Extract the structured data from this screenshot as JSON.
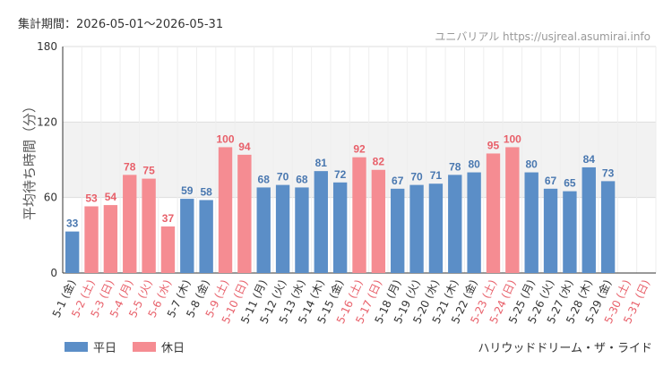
{
  "header": {
    "period": "集計期間：2026-05-01～2026-05-31",
    "site": "ユニバリアル  https://usjreal.asumirai.info"
  },
  "footer": {
    "ride": "ハリウッドドリーム・ザ・ライド"
  },
  "legend": [
    {
      "name": "平日",
      "color": "#5b8ec7"
    },
    {
      "name": "休日",
      "color": "#f58c92"
    }
  ],
  "chart_data": {
    "type": "bar",
    "ylabel": "平均待ち時間（分）",
    "ylim": [
      0,
      180
    ],
    "yticks": [
      0,
      60,
      120,
      180
    ],
    "highlight_band": [
      60,
      120
    ],
    "categories": [
      "5-1 (金)",
      "5-2 (土)",
      "5-3 (日)",
      "5-4 (月)",
      "5-5 (火)",
      "5-6 (水)",
      "5-7 (木)",
      "5-8 (金)",
      "5-9 (土)",
      "5-10 (日)",
      "5-11 (月)",
      "5-12 (火)",
      "5-13 (水)",
      "5-14 (木)",
      "5-15 (金)",
      "5-16 (土)",
      "5-17 (日)",
      "5-18 (月)",
      "5-19 (火)",
      "5-20 (水)",
      "5-21 (木)",
      "5-22 (金)",
      "5-23 (土)",
      "5-24 (日)",
      "5-25 (月)",
      "5-26 (火)",
      "5-27 (水)",
      "5-28 (木)",
      "5-29 (金)",
      "5-30 (土)",
      "5-31 (日)"
    ],
    "values": [
      33,
      53,
      54,
      78,
      75,
      37,
      59,
      58,
      100,
      94,
      68,
      70,
      68,
      81,
      72,
      92,
      82,
      67,
      70,
      71,
      78,
      80,
      95,
      100,
      80,
      67,
      65,
      84,
      73,
      null,
      null
    ],
    "holiday": [
      false,
      true,
      true,
      true,
      true,
      true,
      false,
      false,
      true,
      true,
      false,
      false,
      false,
      false,
      false,
      true,
      true,
      false,
      false,
      false,
      false,
      false,
      true,
      true,
      false,
      false,
      false,
      false,
      false,
      true,
      true
    ],
    "colors": {
      "weekday": "#5b8ec7",
      "holiday": "#f58c92",
      "weekday_text": "#4a78b0",
      "holiday_text": "#e8606a"
    }
  }
}
